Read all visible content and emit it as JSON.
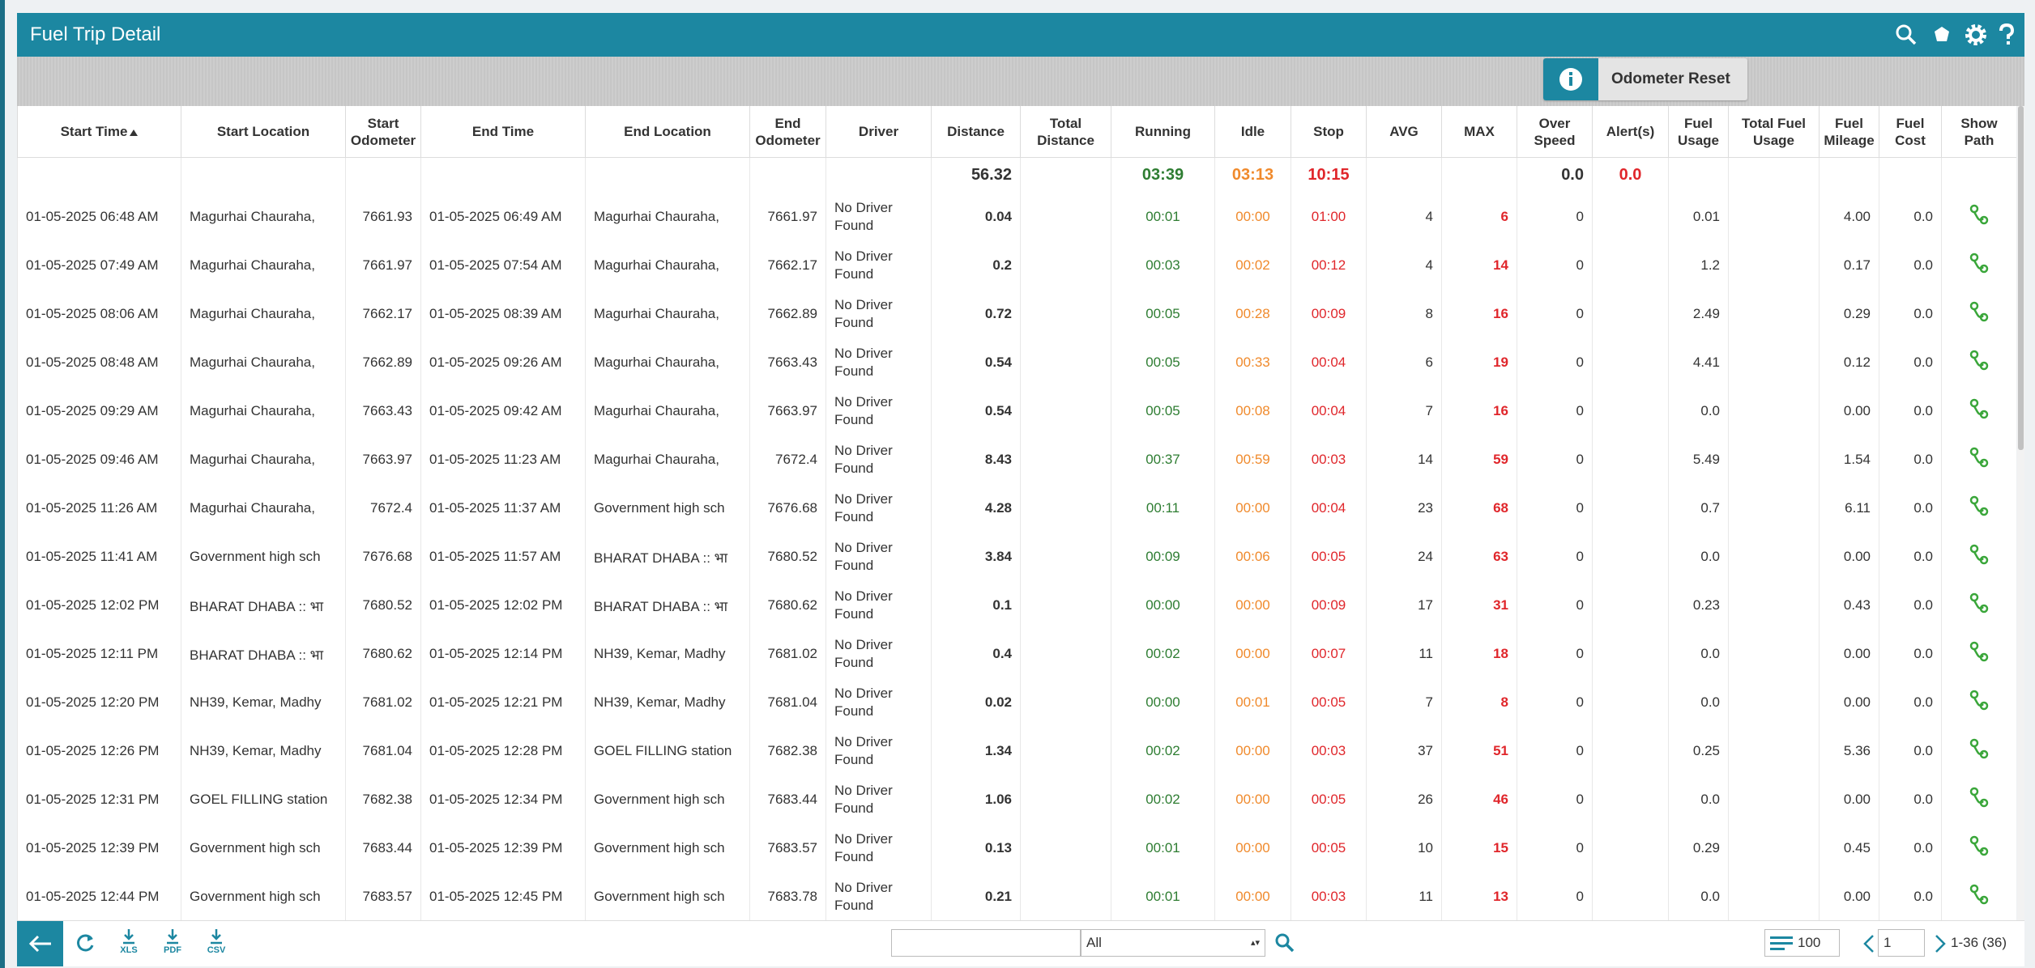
{
  "header": {
    "title": "Fuel Trip Detail"
  },
  "toolbar": {
    "button": "Odometer Reset"
  },
  "table": {
    "columns": [
      "Start Time",
      "Start Location",
      "Start Odometer",
      "End Time",
      "End Location",
      "End Odometer",
      "Driver",
      "Distance",
      "Total Distance",
      "Running",
      "Idle",
      "Stop",
      "AVG",
      "MAX",
      "Over Speed",
      "Alert(s)",
      "Fuel Usage",
      "Total Fuel Usage",
      "Fuel Mileage",
      "Fuel Cost",
      "Show Path"
    ],
    "totals": {
      "distance": "56.32",
      "running": "03:39",
      "idle": "03:13",
      "stop": "10:15",
      "over_speed": "0.0",
      "alerts": "0.0"
    },
    "rows": [
      {
        "start_time": "01-05-2025 06:48 AM",
        "start_location": "Magurhai Chauraha,",
        "start_odometer": "7661.93",
        "end_time": "01-05-2025 06:49 AM",
        "end_location": "Magurhai Chauraha,",
        "end_odometer": "7661.97",
        "driver": "No Driver Found",
        "distance": "0.04",
        "running": "00:01",
        "idle": "00:00",
        "stop": "01:00",
        "avg": "4",
        "max": "6",
        "over_speed": "0",
        "fuel_usage": "0.01",
        "fuel_mileage": "4.00",
        "fuel_cost": "0.0"
      },
      {
        "start_time": "01-05-2025 07:49 AM",
        "start_location": "Magurhai Chauraha,",
        "start_odometer": "7661.97",
        "end_time": "01-05-2025 07:54 AM",
        "end_location": "Magurhai Chauraha,",
        "end_odometer": "7662.17",
        "driver": "No Driver Found",
        "distance": "0.2",
        "running": "00:03",
        "idle": "00:02",
        "stop": "00:12",
        "avg": "4",
        "max": "14",
        "over_speed": "0",
        "fuel_usage": "1.2",
        "fuel_mileage": "0.17",
        "fuel_cost": "0.0"
      },
      {
        "start_time": "01-05-2025 08:06 AM",
        "start_location": "Magurhai Chauraha,",
        "start_odometer": "7662.17",
        "end_time": "01-05-2025 08:39 AM",
        "end_location": "Magurhai Chauraha,",
        "end_odometer": "7662.89",
        "driver": "No Driver Found",
        "distance": "0.72",
        "running": "00:05",
        "idle": "00:28",
        "stop": "00:09",
        "avg": "8",
        "max": "16",
        "over_speed": "0",
        "fuel_usage": "2.49",
        "fuel_mileage": "0.29",
        "fuel_cost": "0.0"
      },
      {
        "start_time": "01-05-2025 08:48 AM",
        "start_location": "Magurhai Chauraha,",
        "start_odometer": "7662.89",
        "end_time": "01-05-2025 09:26 AM",
        "end_location": "Magurhai Chauraha,",
        "end_odometer": "7663.43",
        "driver": "No Driver Found",
        "distance": "0.54",
        "running": "00:05",
        "idle": "00:33",
        "stop": "00:04",
        "avg": "6",
        "max": "19",
        "over_speed": "0",
        "fuel_usage": "4.41",
        "fuel_mileage": "0.12",
        "fuel_cost": "0.0"
      },
      {
        "start_time": "01-05-2025 09:29 AM",
        "start_location": "Magurhai Chauraha,",
        "start_odometer": "7663.43",
        "end_time": "01-05-2025 09:42 AM",
        "end_location": "Magurhai Chauraha,",
        "end_odometer": "7663.97",
        "driver": "No Driver Found",
        "distance": "0.54",
        "running": "00:05",
        "idle": "00:08",
        "stop": "00:04",
        "avg": "7",
        "max": "16",
        "over_speed": "0",
        "fuel_usage": "0.0",
        "fuel_mileage": "0.00",
        "fuel_cost": "0.0"
      },
      {
        "start_time": "01-05-2025 09:46 AM",
        "start_location": "Magurhai Chauraha,",
        "start_odometer": "7663.97",
        "end_time": "01-05-2025 11:23 AM",
        "end_location": "Magurhai Chauraha,",
        "end_odometer": "7672.4",
        "driver": "No Driver Found",
        "distance": "8.43",
        "running": "00:37",
        "idle": "00:59",
        "stop": "00:03",
        "avg": "14",
        "max": "59",
        "over_speed": "0",
        "fuel_usage": "5.49",
        "fuel_mileage": "1.54",
        "fuel_cost": "0.0"
      },
      {
        "start_time": "01-05-2025 11:26 AM",
        "start_location": "Magurhai Chauraha,",
        "start_odometer": "7672.4",
        "end_time": "01-05-2025 11:37 AM",
        "end_location": "Government high sch",
        "end_odometer": "7676.68",
        "driver": "No Driver Found",
        "distance": "4.28",
        "running": "00:11",
        "idle": "00:00",
        "stop": "00:04",
        "avg": "23",
        "max": "68",
        "over_speed": "0",
        "fuel_usage": "0.7",
        "fuel_mileage": "6.11",
        "fuel_cost": "0.0"
      },
      {
        "start_time": "01-05-2025 11:41 AM",
        "start_location": "Government high sch",
        "start_odometer": "7676.68",
        "end_time": "01-05-2025 11:57 AM",
        "end_location": "BHARAT DHABA :: भा",
        "end_odometer": "7680.52",
        "driver": "No Driver Found",
        "distance": "3.84",
        "running": "00:09",
        "idle": "00:06",
        "stop": "00:05",
        "avg": "24",
        "max": "63",
        "over_speed": "0",
        "fuel_usage": "0.0",
        "fuel_mileage": "0.00",
        "fuel_cost": "0.0"
      },
      {
        "start_time": "01-05-2025 12:02 PM",
        "start_location": "BHARAT DHABA :: भा",
        "start_odometer": "7680.52",
        "end_time": "01-05-2025 12:02 PM",
        "end_location": "BHARAT DHABA :: भा",
        "end_odometer": "7680.62",
        "driver": "No Driver Found",
        "distance": "0.1",
        "running": "00:00",
        "idle": "00:00",
        "stop": "00:09",
        "avg": "17",
        "max": "31",
        "over_speed": "0",
        "fuel_usage": "0.23",
        "fuel_mileage": "0.43",
        "fuel_cost": "0.0"
      },
      {
        "start_time": "01-05-2025 12:11 PM",
        "start_location": "BHARAT DHABA :: भा",
        "start_odometer": "7680.62",
        "end_time": "01-05-2025 12:14 PM",
        "end_location": "NH39, Kemar, Madhy",
        "end_odometer": "7681.02",
        "driver": "No Driver Found",
        "distance": "0.4",
        "running": "00:02",
        "idle": "00:00",
        "stop": "00:07",
        "avg": "11",
        "max": "18",
        "over_speed": "0",
        "fuel_usage": "0.0",
        "fuel_mileage": "0.00",
        "fuel_cost": "0.0"
      },
      {
        "start_time": "01-05-2025 12:20 PM",
        "start_location": "NH39, Kemar, Madhy",
        "start_odometer": "7681.02",
        "end_time": "01-05-2025 12:21 PM",
        "end_location": "NH39, Kemar, Madhy",
        "end_odometer": "7681.04",
        "driver": "No Driver Found",
        "distance": "0.02",
        "running": "00:00",
        "idle": "00:01",
        "stop": "00:05",
        "avg": "7",
        "max": "8",
        "over_speed": "0",
        "fuel_usage": "0.0",
        "fuel_mileage": "0.00",
        "fuel_cost": "0.0"
      },
      {
        "start_time": "01-05-2025 12:26 PM",
        "start_location": "NH39, Kemar, Madhy",
        "start_odometer": "7681.04",
        "end_time": "01-05-2025 12:28 PM",
        "end_location": "GOEL FILLING station",
        "end_odometer": "7682.38",
        "driver": "No Driver Found",
        "distance": "1.34",
        "running": "00:02",
        "idle": "00:00",
        "stop": "00:03",
        "avg": "37",
        "max": "51",
        "over_speed": "0",
        "fuel_usage": "0.25",
        "fuel_mileage": "5.36",
        "fuel_cost": "0.0"
      },
      {
        "start_time": "01-05-2025 12:31 PM",
        "start_location": "GOEL FILLING station",
        "start_odometer": "7682.38",
        "end_time": "01-05-2025 12:34 PM",
        "end_location": "Government high sch",
        "end_odometer": "7683.44",
        "driver": "No Driver Found",
        "distance": "1.06",
        "running": "00:02",
        "idle": "00:00",
        "stop": "00:05",
        "avg": "26",
        "max": "46",
        "over_speed": "0",
        "fuel_usage": "0.0",
        "fuel_mileage": "0.00",
        "fuel_cost": "0.0"
      },
      {
        "start_time": "01-05-2025 12:39 PM",
        "start_location": "Government high sch",
        "start_odometer": "7683.44",
        "end_time": "01-05-2025 12:39 PM",
        "end_location": "Government high sch",
        "end_odometer": "7683.57",
        "driver": "No Driver Found",
        "distance": "0.13",
        "running": "00:01",
        "idle": "00:00",
        "stop": "00:05",
        "avg": "10",
        "max": "15",
        "over_speed": "0",
        "fuel_usage": "0.29",
        "fuel_mileage": "0.45",
        "fuel_cost": "0.0"
      },
      {
        "start_time": "01-05-2025 12:44 PM",
        "start_location": "Government high sch",
        "start_odometer": "7683.57",
        "end_time": "01-05-2025 12:45 PM",
        "end_location": "Government high sch",
        "end_odometer": "7683.78",
        "driver": "No Driver Found",
        "distance": "0.21",
        "running": "00:01",
        "idle": "00:00",
        "stop": "00:03",
        "avg": "11",
        "max": "13",
        "over_speed": "0",
        "fuel_usage": "0.0",
        "fuel_mileage": "0.00",
        "fuel_cost": "0.0"
      }
    ]
  },
  "footer": {
    "exports": [
      "XLS",
      "PDF",
      "CSV"
    ],
    "filter": "All",
    "page_size": "100",
    "page": "1",
    "range": "1-36 (36)"
  }
}
